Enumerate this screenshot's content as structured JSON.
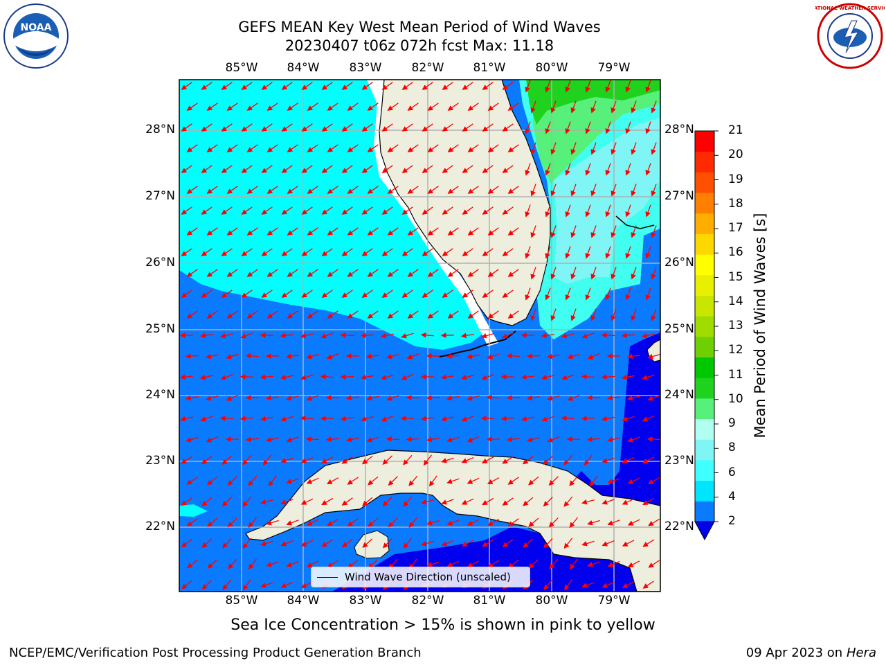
{
  "title_line1": "GEFS MEAN Key West Mean Period of Wind Waves",
  "title_line2": "20230407 t06z 072h fcst   Max: 11.18",
  "lon_labels": [
    "85°W",
    "84°W",
    "83°W",
    "82°W",
    "81°W",
    "80°W",
    "79°W"
  ],
  "lat_labels": [
    "28°N",
    "27°N",
    "26°N",
    "25°N",
    "24°N",
    "23°N",
    "22°N"
  ],
  "colorbar": {
    "label": "Mean Period of Wind Waves [s]",
    "ticks": [
      "2",
      "4",
      "6",
      "8",
      "9",
      "10",
      "11",
      "12",
      "13",
      "14",
      "15",
      "16",
      "17",
      "18",
      "19",
      "20",
      "21"
    ],
    "colors": [
      "#0a7aff",
      "#00e5ff",
      "#40ffff",
      "#7ff5f5",
      "#b0fff0",
      "#56f07a",
      "#1ed21e",
      "#00c800",
      "#6ed000",
      "#a0dc00",
      "#c8e600",
      "#e8f000",
      "#ffff00",
      "#ffd700",
      "#ffae00",
      "#ff8000",
      "#ff5000",
      "#ff2a00",
      "#ff0000"
    ],
    "extend_color": "#0000ee"
  },
  "legend_text": "Wind Wave Direction (unscaled)",
  "caption": "Sea Ice Concentration > 15% is shown in pink to yellow",
  "footer_left": "NCEP/EMC/Verification Post Processing Product Generation Branch",
  "footer_date": "09 Apr 2023 on ",
  "footer_host": "Hera",
  "logo_left_text": "NOAA",
  "logo_right_text": "NATIONAL WEATHER SERVICE",
  "colors": {
    "land": "#eeeedf",
    "period_2_4": "#0a7aff",
    "period_4_6": "#00ffff",
    "period_6_8": "#40fff0",
    "period_8_9": "#7ff5f5",
    "period_9_10": "#56f07a",
    "period_10_11": "#1ed21e",
    "below_2": "#0000ee",
    "arrows": "#ff0000",
    "grid": "#b0b0b0"
  }
}
